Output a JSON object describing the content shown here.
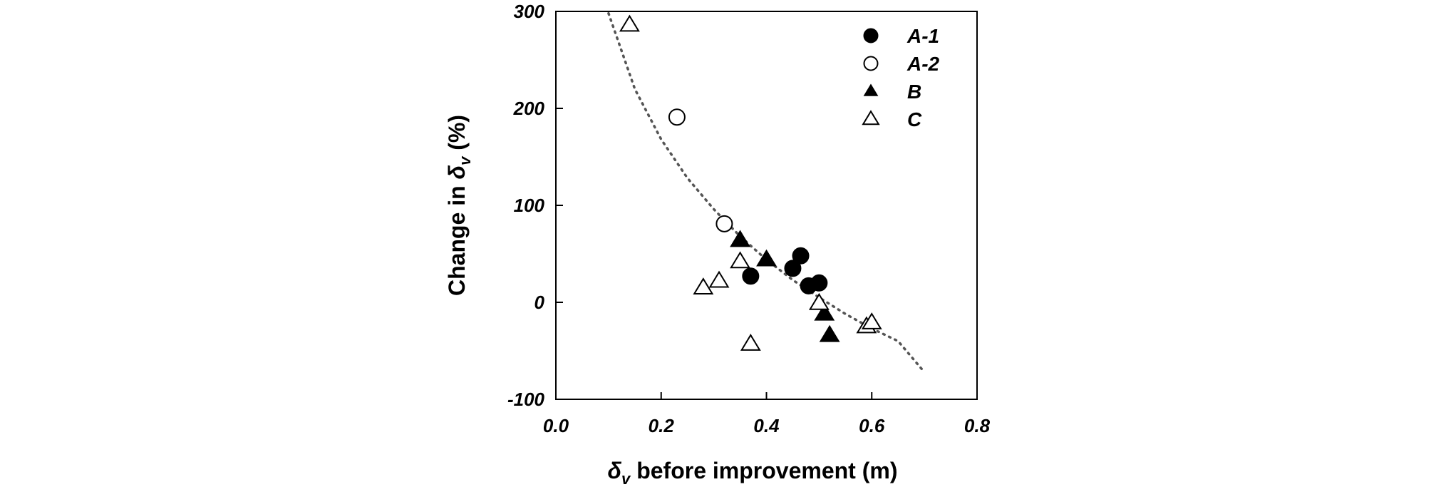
{
  "chart_data": {
    "type": "scatter",
    "xlabel_symbol": "δ",
    "xlabel_sub": "v",
    "xlabel_rest": " before improvement (m)",
    "ylabel_prefix": "Change in ",
    "ylabel_symbol": "δ",
    "ylabel_sub": "v",
    "ylabel_suffix": " (%)",
    "xlim": [
      0.0,
      0.8
    ],
    "ylim": [
      -100,
      300
    ],
    "xticks": [
      0.0,
      0.2,
      0.4,
      0.6,
      0.8
    ],
    "xtick_labels": [
      "0.0",
      "0.2",
      "0.4",
      "0.6",
      "0.8"
    ],
    "yticks": [
      300,
      200,
      100,
      0,
      -100
    ],
    "ytick_labels": [
      "300",
      "200",
      "100",
      "0",
      "-100"
    ],
    "grid": false,
    "legend_position": "top-right",
    "series": [
      {
        "name": "A-1",
        "marker": "circle",
        "filled": true,
        "points": [
          [
            0.37,
            27
          ],
          [
            0.45,
            35
          ],
          [
            0.465,
            48
          ],
          [
            0.48,
            17
          ],
          [
            0.5,
            20
          ]
        ]
      },
      {
        "name": "A-2",
        "marker": "circle",
        "filled": false,
        "points": [
          [
            0.23,
            191
          ],
          [
            0.32,
            81
          ]
        ]
      },
      {
        "name": "B",
        "marker": "triangle",
        "filled": true,
        "points": [
          [
            0.35,
            64
          ],
          [
            0.4,
            44
          ],
          [
            0.51,
            -12
          ],
          [
            0.52,
            -34
          ]
        ]
      },
      {
        "name": "C",
        "marker": "triangle",
        "filled": false,
        "points": [
          [
            0.14,
            286
          ],
          [
            0.28,
            15
          ],
          [
            0.31,
            22
          ],
          [
            0.35,
            42
          ],
          [
            0.37,
            -43
          ],
          [
            0.5,
            -1
          ],
          [
            0.59,
            -25
          ],
          [
            0.6,
            -21
          ]
        ]
      }
    ],
    "trendline": {
      "style": "dotted",
      "x_range": [
        0.1,
        0.7
      ],
      "points": [
        [
          0.1,
          298
        ],
        [
          0.15,
          220
        ],
        [
          0.2,
          168
        ],
        [
          0.25,
          128
        ],
        [
          0.3,
          96
        ],
        [
          0.35,
          68
        ],
        [
          0.4,
          44
        ],
        [
          0.45,
          23
        ],
        [
          0.5,
          5
        ],
        [
          0.55,
          -12
        ],
        [
          0.6,
          -27
        ],
        [
          0.65,
          -40
        ],
        [
          0.7,
          -72
        ]
      ]
    }
  }
}
